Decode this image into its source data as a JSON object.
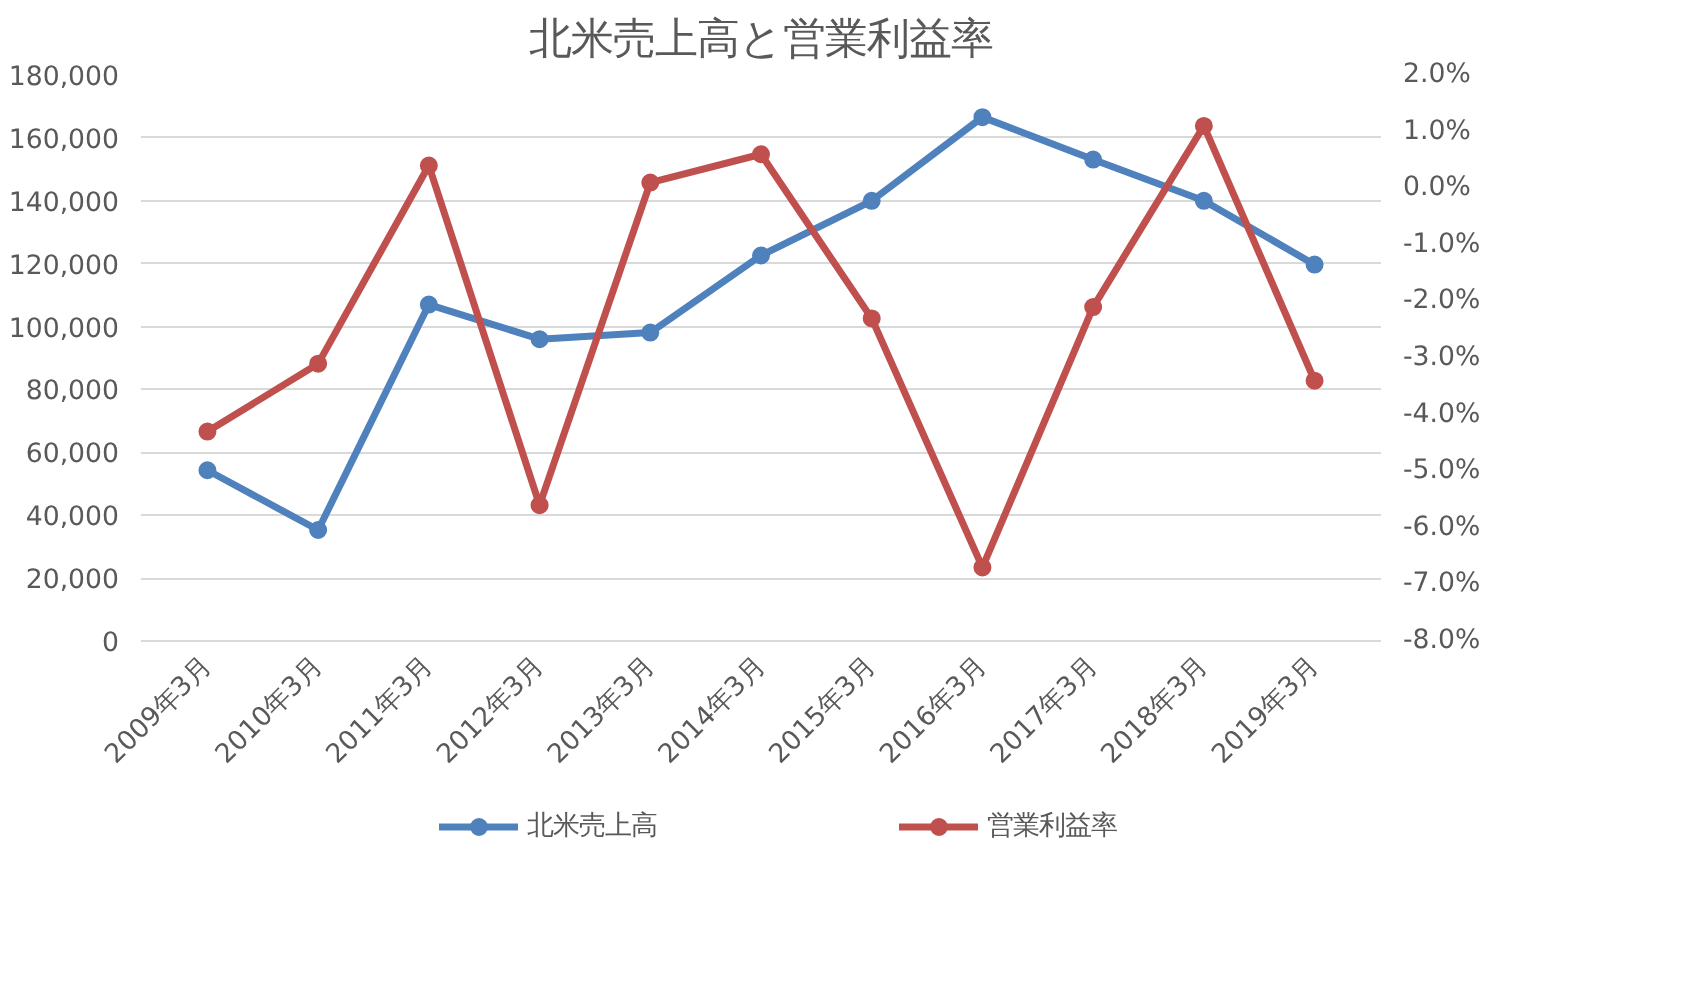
{
  "chart_data": {
    "type": "line",
    "title": "北米売上高と営業利益率",
    "categories": [
      "2009年3月",
      "2010年3月",
      "2011年3月",
      "2012年3月",
      "2013年3月",
      "2014年3月",
      "2015年3月",
      "2016年3月",
      "2017年3月",
      "2018年3月",
      "2019年3月"
    ],
    "series": [
      {
        "name": "北米売上高",
        "color": "#4f81bd",
        "values": [
          54300,
          35300,
          107000,
          96000,
          98100,
          122600,
          140000,
          166600,
          153100,
          140000,
          119700
        ]
      },
      {
        "name": "営業利益率",
        "color": "#c0504d",
        "axis": "y2",
        "values": [
          -4.3,
          -3.1,
          0.4,
          -5.6,
          0.1,
          0.6,
          -2.3,
          -6.7,
          -2.1,
          1.1,
          -3.4
        ]
      }
    ],
    "ylim": [
      0,
      180000
    ],
    "yticks": [
      {
        "value": 0,
        "label": "0"
      },
      {
        "value": 20000,
        "label": "20,000"
      },
      {
        "value": 40000,
        "label": "40,000"
      },
      {
        "value": 60000,
        "label": "60,000"
      },
      {
        "value": 80000,
        "label": "80,000"
      },
      {
        "value": 100000,
        "label": "100,000"
      },
      {
        "value": 120000,
        "label": "120,000"
      },
      {
        "value": 140000,
        "label": "140,000"
      },
      {
        "value": 160000,
        "label": "160,000"
      },
      {
        "value": 180000,
        "label": "180,000"
      }
    ],
    "y2lim": [
      -8,
      2
    ],
    "y2ticks": [
      {
        "value": -8,
        "label": "-8.0%"
      },
      {
        "value": -7,
        "label": "-7.0%"
      },
      {
        "value": -6,
        "label": "-6.0%"
      },
      {
        "value": -5,
        "label": "-5.0%"
      },
      {
        "value": -4,
        "label": "-4.0%"
      },
      {
        "value": -3,
        "label": "-3.0%"
      },
      {
        "value": -2,
        "label": "-2.0%"
      },
      {
        "value": -1,
        "label": "-1.0%"
      },
      {
        "value": 0,
        "label": "0.0%"
      },
      {
        "value": 1,
        "label": "1.0%"
      },
      {
        "value": 2,
        "label": "2.0%"
      }
    ],
    "grid": "y",
    "legend": "bottom",
    "marker": "circle",
    "line_style": "solid"
  }
}
